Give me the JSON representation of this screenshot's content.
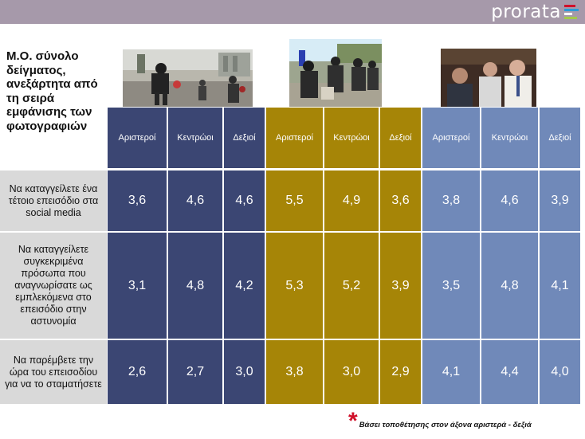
{
  "brand": {
    "logo_text": "prorata",
    "bar_colors": [
      "#d0102a",
      "#2b9bd6",
      "#ffffff",
      "#a3c94a"
    ]
  },
  "title": "Μ.Ο. σύνολο δείγματος, ανεξάρτητα από τη σειρά εμφάνισης των φωτογραφιών",
  "groups": [
    {
      "color": "#3b4673",
      "columns": [
        "Αριστεροί",
        "Κεντρώοι",
        "Δεξιοί"
      ],
      "photo_icon": "riot-protest-photo-icon"
    },
    {
      "color": "#a68507",
      "columns": [
        "Αριστεροί",
        "Κεντρώοι",
        "Δεξιοί"
      ],
      "photo_icon": "police-riot-photo-icon"
    },
    {
      "color": "#7089b9",
      "columns": [
        "Αριστεροί",
        "Κεντρώοι",
        "Δεξιοί"
      ],
      "photo_icon": "politician-incident-photo-icon"
    }
  ],
  "rows": [
    {
      "label": "Να καταγγείλετε ένα τέτοιο επεισόδιο στα social media",
      "values": [
        "3,6",
        "4,6",
        "4,6",
        "5,5",
        "4,9",
        "3,6",
        "3,8",
        "4,6",
        "3,9"
      ]
    },
    {
      "label": "Να καταγγείλετε συγκεκριμένα πρόσωπα που αναγνωρίσατε ως εμπλεκόμενα στο επεισόδιο στην αστυνομία",
      "values": [
        "3,1",
        "4,8",
        "4,2",
        "5,3",
        "5,2",
        "3,9",
        "3,5",
        "4,8",
        "4,1"
      ]
    },
    {
      "label": "Να παρέμβετε την ώρα του επεισοδίου για να το σταματήσετε",
      "values": [
        "2,6",
        "2,7",
        "3,0",
        "3,8",
        "3,0",
        "2,9",
        "4,1",
        "4,4",
        "4,0"
      ]
    }
  ],
  "footnote": {
    "mark": "*",
    "text": "Βάσει τοποθέτησης στον άξονα αριστερά - δεξιά"
  }
}
